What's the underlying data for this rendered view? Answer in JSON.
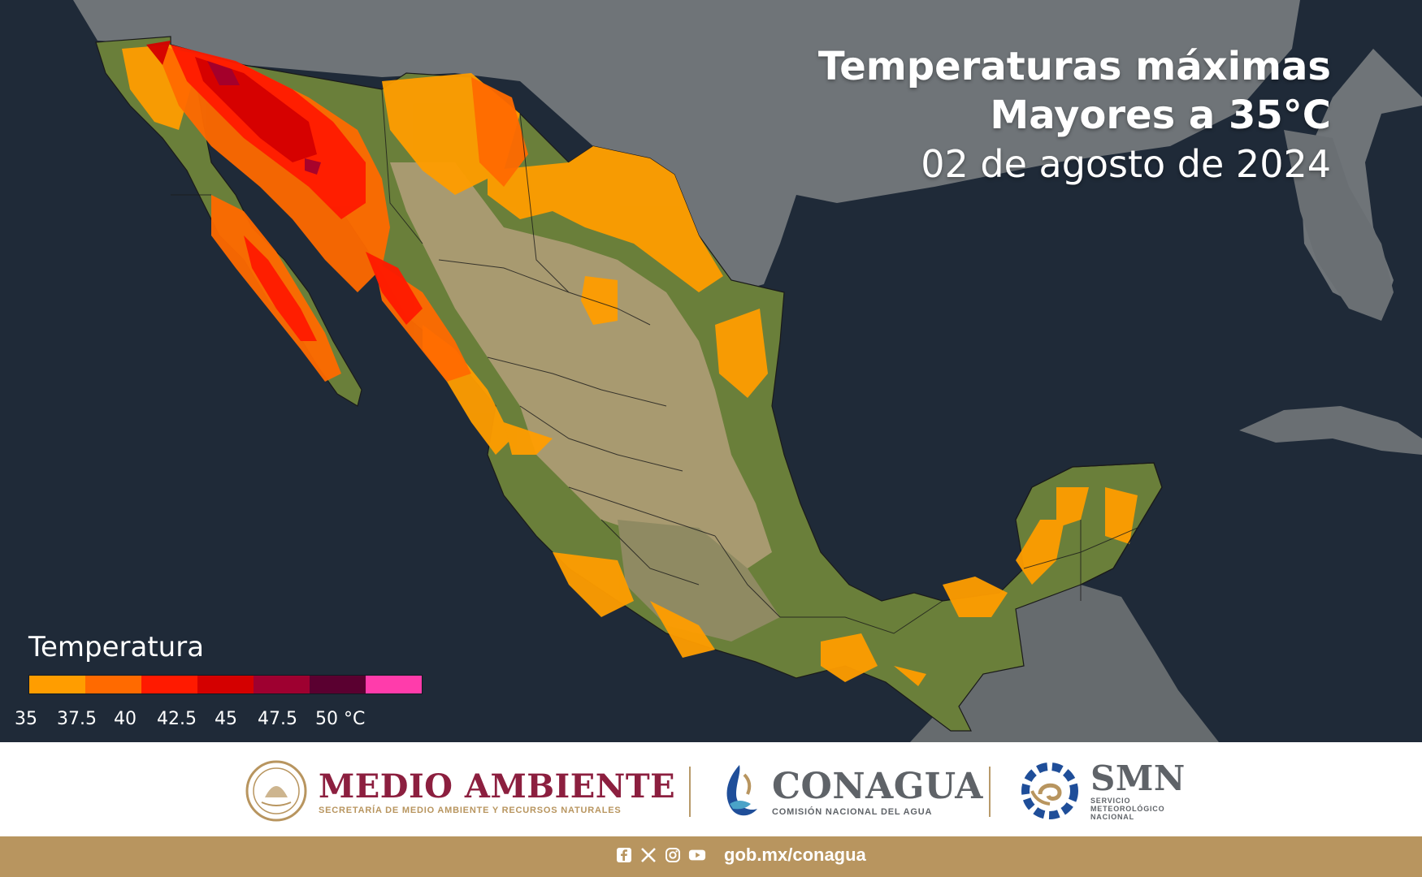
{
  "title": {
    "line1": "Temperaturas máximas",
    "line2": "Mayores a 35°C",
    "date": "02 de agosto de 2024"
  },
  "legend": {
    "title": "Temperatura",
    "bins": [
      {
        "from": 35,
        "to": 37.5,
        "color": "#ff9d00"
      },
      {
        "from": 37.5,
        "to": 40,
        "color": "#ff6a00"
      },
      {
        "from": 40,
        "to": 42.5,
        "color": "#ff1a00"
      },
      {
        "from": 42.5,
        "to": 45,
        "color": "#d40000"
      },
      {
        "from": 45,
        "to": 47.5,
        "color": "#9e0030"
      },
      {
        "from": 47.5,
        "to": 50,
        "color": "#5a0030"
      },
      {
        "from": 50,
        "to": null,
        "color": "#ff3cab"
      }
    ],
    "tick_labels": [
      "35",
      "37.5",
      "40",
      "42.5",
      "45",
      "47.5",
      "50 °C"
    ]
  },
  "colors": {
    "ocean": "#1f2a38",
    "land_foreign": "#6f7478",
    "land_mexico": "#6a7f3a",
    "plateau": "#a89a70",
    "footer_bar": "#b8955f",
    "medio_ambiente": "#8c1f3f",
    "conagua": "#5f6368",
    "smn_blue": "#1f4e99",
    "gold": "#b8955f"
  },
  "footer": {
    "logos": {
      "medio_ambiente_title": "MEDIO AMBIENTE",
      "medio_ambiente_sub": "SECRETARÍA DE MEDIO AMBIENTE Y RECURSOS NATURALES",
      "conagua_title": "CONAGUA",
      "conagua_sub": "COMISIÓN NACIONAL DEL AGUA",
      "smn_title": "SMN",
      "smn_sub1": "SERVICIO",
      "smn_sub2": "METEOROLÓGICO",
      "smn_sub3": "NACIONAL"
    },
    "social_icons": [
      "facebook-icon",
      "x-icon",
      "instagram-icon",
      "youtube-icon"
    ],
    "url": "gob.mx/conagua"
  }
}
